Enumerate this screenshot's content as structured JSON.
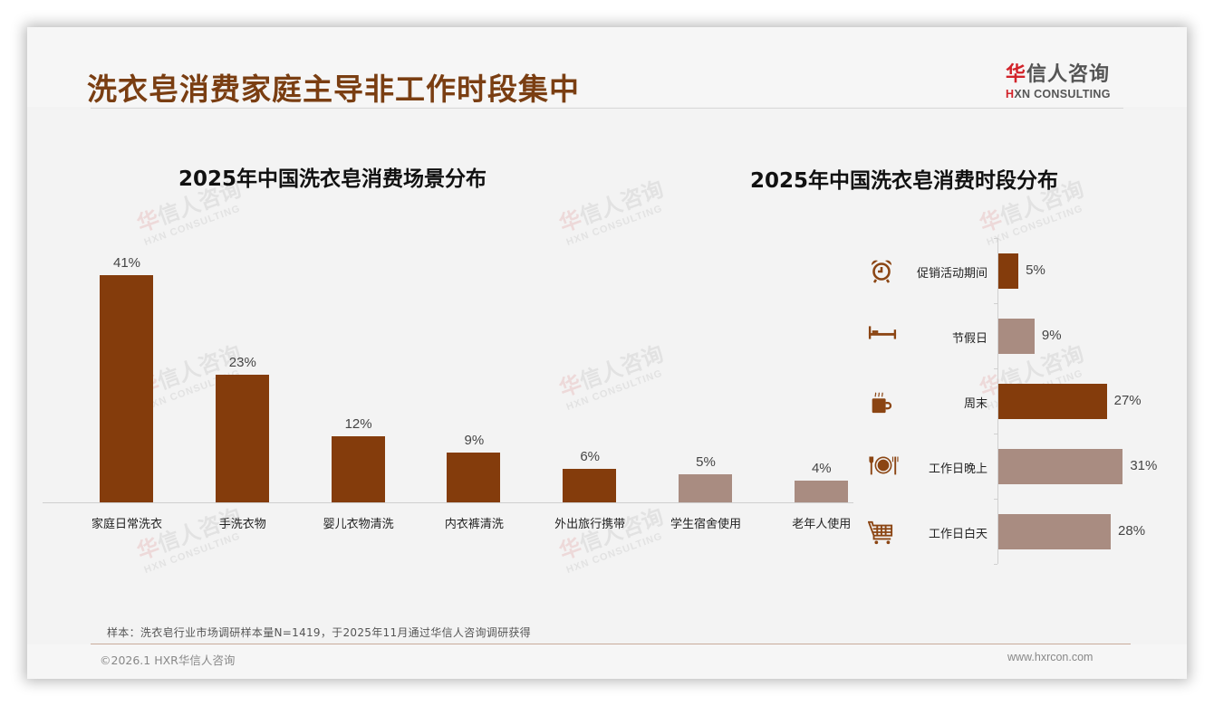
{
  "header": {
    "title": "洗衣皂消费家庭主导非工作时段集中",
    "logo_cn_first": "华",
    "logo_cn_rest": "信人咨询",
    "logo_en_first": "H",
    "logo_en_rest": "XN CONSULTING"
  },
  "colors": {
    "primary_bar": "#843c0c",
    "secondary_bar": "#a98c81",
    "title": "#7a3e12",
    "icon": "#8b4513"
  },
  "watermark": {
    "cn_first": "华",
    "cn_rest": "信人咨询",
    "en": "HXN CONSULTING"
  },
  "chart_data": [
    {
      "type": "bar",
      "title": "2025年中国洗衣皂消费场景分布",
      "categories": [
        "家庭日常洗衣",
        "手洗衣物",
        "婴儿衣物清洗",
        "内衣裤清洗",
        "外出旅行携带",
        "学生宿舍使用",
        "老年人使用"
      ],
      "values": [
        41,
        23,
        12,
        9,
        6,
        5,
        4
      ],
      "value_labels": [
        "41%",
        "23%",
        "12%",
        "9%",
        "6%",
        "5%",
        "4%"
      ],
      "bar_colors": [
        "#843c0c",
        "#843c0c",
        "#843c0c",
        "#843c0c",
        "#843c0c",
        "#a98c81",
        "#a98c81"
      ],
      "xlabel": "",
      "ylabel": "",
      "unit": "%",
      "ylim": [
        0,
        45
      ],
      "grid": false,
      "legend": "none"
    },
    {
      "type": "bar",
      "orientation": "horizontal",
      "title": "2025年中国洗衣皂消费时段分布",
      "categories": [
        "促销活动期间",
        "节假日",
        "周末",
        "工作日晚上",
        "工作日白天"
      ],
      "icons": [
        "alarm-clock-icon",
        "bed-icon",
        "coffee-cup-icon",
        "plate-cutlery-icon",
        "shopping-cart-icon"
      ],
      "values": [
        5,
        9,
        27,
        31,
        28
      ],
      "value_labels": [
        "5%",
        "9%",
        "27%",
        "31%",
        "28%"
      ],
      "bar_colors": [
        "#843c0c",
        "#a98c81",
        "#843c0c",
        "#a98c81",
        "#a98c81"
      ],
      "xlabel": "",
      "ylabel": "",
      "unit": "%",
      "xlim": [
        0,
        35
      ],
      "grid": false,
      "legend": "none"
    }
  ],
  "footer": {
    "note": "样本：洗衣皂行业市场调研样本量N=1419，于2025年11月通过华信人咨询调研获得",
    "copyright": "©2026.1 HXR华信人咨询",
    "website": "www.hxrcon.com"
  }
}
